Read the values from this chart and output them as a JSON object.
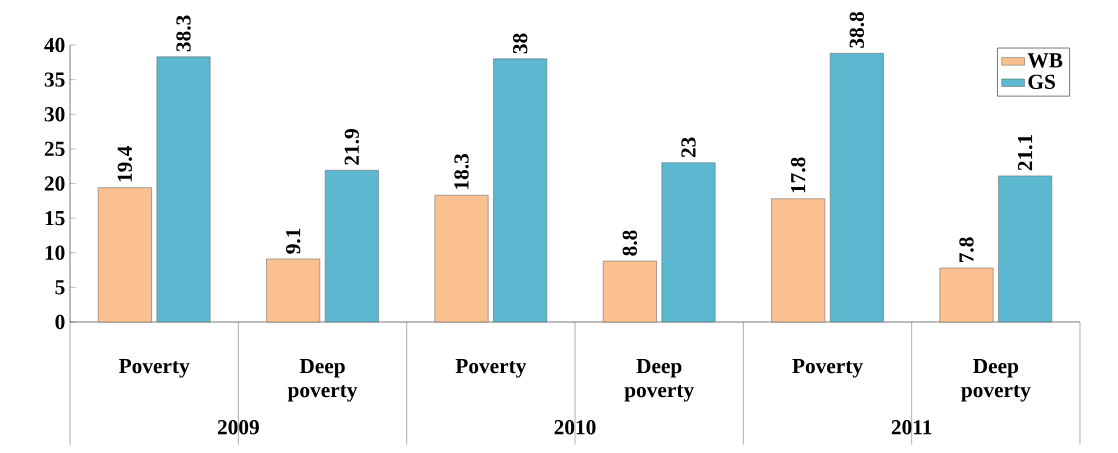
{
  "chart_data": {
    "type": "bar",
    "categories": [
      "Poverty",
      "Deep poverty",
      "Poverty",
      "Deep poverty",
      "Poverty",
      "Deep poverty"
    ],
    "series": [
      {
        "name": "WB",
        "color": "#fac090",
        "values": [
          19.4,
          9.1,
          18.3,
          8.8,
          17.8,
          7.8
        ]
      },
      {
        "name": "GS",
        "color": "#5bb8d0",
        "values": [
          38.3,
          21.9,
          38,
          23,
          38.8,
          21.1
        ]
      }
    ],
    "annotations": [
      "2009",
      "2010",
      "2011"
    ],
    "ylim": [
      0,
      40
    ],
    "yticks": [
      0,
      5,
      10,
      15,
      20,
      25,
      30,
      35,
      40
    ],
    "data_labels": true,
    "legend": "top right",
    "grid": false
  }
}
